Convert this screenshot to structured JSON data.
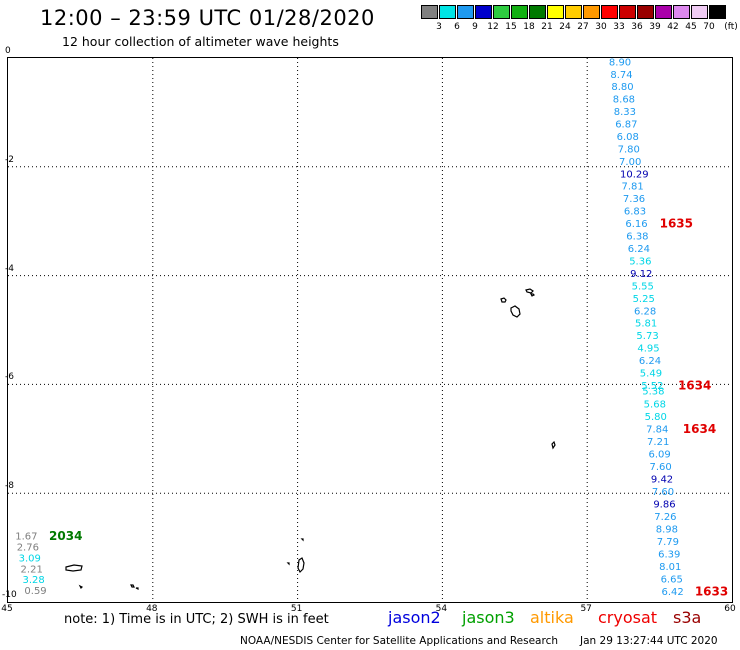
{
  "header": {
    "title": "12:00 – 23:59 UTC 01/28/2020",
    "subtitle": "12 hour collection of altimeter wave heights"
  },
  "legend": {
    "unit_label": "(ft)",
    "bins": [
      {
        "label": "3",
        "color": "#808080"
      },
      {
        "label": "6",
        "color": "#00e5e5"
      },
      {
        "label": "9",
        "color": "#1e9af0"
      },
      {
        "label": "12",
        "color": "#0000cc"
      },
      {
        "label": "15",
        "color": "#2ecc40"
      },
      {
        "label": "18",
        "color": "#12b012"
      },
      {
        "label": "21",
        "color": "#007a00"
      },
      {
        "label": "24",
        "color": "#ffff00"
      },
      {
        "label": "27",
        "color": "#ffcc00"
      },
      {
        "label": "30",
        "color": "#ff9900"
      },
      {
        "label": "33",
        "color": "#ff0000"
      },
      {
        "label": "36",
        "color": "#cc0000"
      },
      {
        "label": "39",
        "color": "#990000"
      },
      {
        "label": "42",
        "color": "#aa00aa"
      },
      {
        "label": "45",
        "color": "#dd88ee"
      },
      {
        "label": "70",
        "color": "#f0ccf4"
      },
      {
        "label": "",
        "color": "#000000"
      }
    ]
  },
  "axes": {
    "x_ticks": [
      {
        "value": 45,
        "label": "45"
      },
      {
        "value": 48,
        "label": "48"
      },
      {
        "value": 51,
        "label": "51"
      },
      {
        "value": 54,
        "label": "54"
      },
      {
        "value": 57,
        "label": "57"
      },
      {
        "value": 60,
        "label": "60"
      }
    ],
    "y_ticks": [
      {
        "value": 0,
        "label": "0"
      },
      {
        "value": -2,
        "label": "-2"
      },
      {
        "value": -4,
        "label": "-4"
      },
      {
        "value": -6,
        "label": "-6"
      },
      {
        "value": -8,
        "label": "-8"
      },
      {
        "value": -10,
        "label": "-10"
      }
    ],
    "xlim": [
      45,
      60
    ],
    "ylim": [
      -10,
      0
    ]
  },
  "colors": {
    "gray": "#7f7f7f",
    "cyan": "#00d6e6",
    "skyblue": "#1e9af0",
    "darkblue": "#0000b0",
    "green": "#007a00",
    "red": "#e00000",
    "jason2": "#0000dd",
    "jason3": "#00a000",
    "altika": "#ff9900",
    "cryosat": "#ee0000",
    "s3a": "#990000"
  },
  "main_track": [
    {
      "v": "8.90",
      "lon": 57.45,
      "lat": -0.08,
      "c": "skyblue"
    },
    {
      "v": "8.74",
      "lon": 57.48,
      "lat": -0.31,
      "c": "skyblue"
    },
    {
      "v": "8.80",
      "lon": 57.5,
      "lat": -0.53,
      "c": "skyblue"
    },
    {
      "v": "8.68",
      "lon": 57.53,
      "lat": -0.76,
      "c": "skyblue"
    },
    {
      "v": "8.33",
      "lon": 57.55,
      "lat": -0.99,
      "c": "skyblue"
    },
    {
      "v": "6.87",
      "lon": 57.58,
      "lat": -1.22,
      "c": "skyblue"
    },
    {
      "v": "6.08",
      "lon": 57.61,
      "lat": -1.45,
      "c": "skyblue"
    },
    {
      "v": "7.80",
      "lon": 57.63,
      "lat": -1.68,
      "c": "skyblue"
    },
    {
      "v": "7.00",
      "lon": 57.66,
      "lat": -1.91,
      "c": "skyblue"
    },
    {
      "v": "10.29",
      "lon": 57.68,
      "lat": -2.14,
      "c": "darkblue"
    },
    {
      "v": "7.81",
      "lon": 57.71,
      "lat": -2.36,
      "c": "skyblue"
    },
    {
      "v": "7.36",
      "lon": 57.74,
      "lat": -2.59,
      "c": "skyblue"
    },
    {
      "v": "6.83",
      "lon": 57.76,
      "lat": -2.82,
      "c": "skyblue"
    },
    {
      "v": "6.16",
      "lon": 57.79,
      "lat": -3.05,
      "c": "skyblue"
    },
    {
      "v": "6.38",
      "lon": 57.81,
      "lat": -3.28,
      "c": "skyblue"
    },
    {
      "v": "6.24",
      "lon": 57.84,
      "lat": -3.51,
      "c": "skyblue"
    },
    {
      "v": "5.36",
      "lon": 57.87,
      "lat": -3.74,
      "c": "cyan"
    },
    {
      "v": "9.12",
      "lon": 57.89,
      "lat": -3.97,
      "c": "darkblue"
    },
    {
      "v": "5.55",
      "lon": 57.92,
      "lat": -4.2,
      "c": "cyan"
    },
    {
      "v": "5.25",
      "lon": 57.94,
      "lat": -4.43,
      "c": "cyan"
    },
    {
      "v": "6.28",
      "lon": 57.97,
      "lat": -4.66,
      "c": "skyblue"
    },
    {
      "v": "5.81",
      "lon": 57.99,
      "lat": -4.88,
      "c": "cyan"
    },
    {
      "v": "5.73",
      "lon": 58.02,
      "lat": -5.11,
      "c": "cyan"
    },
    {
      "v": "4.95",
      "lon": 58.04,
      "lat": -5.34,
      "c": "cyan"
    },
    {
      "v": "6.24",
      "lon": 58.07,
      "lat": -5.57,
      "c": "skyblue"
    },
    {
      "v": "5.49",
      "lon": 58.09,
      "lat": -5.8,
      "c": "cyan"
    },
    {
      "v": "5.52",
      "lon": 58.12,
      "lat": -6.03,
      "c": "cyan"
    },
    {
      "v": "5.38",
      "lon": 58.14,
      "lat": -6.13,
      "c": "cyan"
    },
    {
      "v": "5.68",
      "lon": 58.17,
      "lat": -6.37,
      "c": "cyan"
    },
    {
      "v": "5.80",
      "lon": 58.19,
      "lat": -6.6,
      "c": "cyan"
    },
    {
      "v": "7.84",
      "lon": 58.22,
      "lat": -6.83,
      "c": "skyblue"
    },
    {
      "v": "7.21",
      "lon": 58.24,
      "lat": -7.06,
      "c": "skyblue"
    },
    {
      "v": "6.09",
      "lon": 58.27,
      "lat": -7.29,
      "c": "skyblue"
    },
    {
      "v": "7.60",
      "lon": 58.29,
      "lat": -7.52,
      "c": "skyblue"
    },
    {
      "v": "9.42",
      "lon": 58.32,
      "lat": -7.75,
      "c": "darkblue"
    },
    {
      "v": "7.60",
      "lon": 58.34,
      "lat": -7.98,
      "c": "skyblue"
    },
    {
      "v": "9.86",
      "lon": 58.37,
      "lat": -8.21,
      "c": "darkblue"
    },
    {
      "v": "7.26",
      "lon": 58.39,
      "lat": -8.44,
      "c": "skyblue"
    },
    {
      "v": "8.98",
      "lon": 58.42,
      "lat": -8.67,
      "c": "skyblue"
    },
    {
      "v": "7.79",
      "lon": 58.44,
      "lat": -8.9,
      "c": "skyblue"
    },
    {
      "v": "6.39",
      "lon": 58.47,
      "lat": -9.13,
      "c": "skyblue"
    },
    {
      "v": "8.01",
      "lon": 58.49,
      "lat": -9.36,
      "c": "skyblue"
    },
    {
      "v": "6.65",
      "lon": 58.52,
      "lat": -9.59,
      "c": "skyblue"
    },
    {
      "v": "6.42",
      "lon": 58.54,
      "lat": -9.82,
      "c": "skyblue"
    }
  ],
  "left_track": [
    {
      "v": "1.67",
      "lon": 45.15,
      "lat": -8.8,
      "c": "gray"
    },
    {
      "v": "2.76",
      "lon": 45.18,
      "lat": -9.0,
      "c": "gray"
    },
    {
      "v": "3.09",
      "lon": 45.22,
      "lat": -9.2,
      "c": "cyan"
    },
    {
      "v": "2.21",
      "lon": 45.26,
      "lat": -9.4,
      "c": "gray"
    },
    {
      "v": "3.28",
      "lon": 45.3,
      "lat": -9.6,
      "c": "cyan"
    },
    {
      "v": "0.59",
      "lon": 45.34,
      "lat": -9.8,
      "c": "gray"
    }
  ],
  "time_labels": [
    {
      "t": "1635",
      "lon": 58.5,
      "lat": -3.05,
      "c": "red"
    },
    {
      "t": "1634",
      "lon": 58.88,
      "lat": -6.03,
      "c": "red"
    },
    {
      "t": "1634",
      "lon": 58.98,
      "lat": -6.83,
      "c": "red"
    },
    {
      "t": "1633",
      "lon": 59.23,
      "lat": -9.82,
      "c": "red"
    },
    {
      "t": "2034",
      "lon": 45.85,
      "lat": -8.8,
      "c": "green"
    }
  ],
  "footer": {
    "note": "note: 1) Time is in UTC; 2) SWH is in feet",
    "satellites": [
      {
        "name": "jason2",
        "c": "jason2"
      },
      {
        "name": "jason3",
        "c": "jason3"
      },
      {
        "name": "altika",
        "c": "altika"
      },
      {
        "name": "cryosat",
        "c": "cryosat"
      },
      {
        "name": "s3a",
        "c": "s3a"
      }
    ],
    "credit": "NOAA/NESDIS Center for Satellite Applications and Research",
    "timestamp": "Jan 29 13:27:44 UTC 2020"
  }
}
